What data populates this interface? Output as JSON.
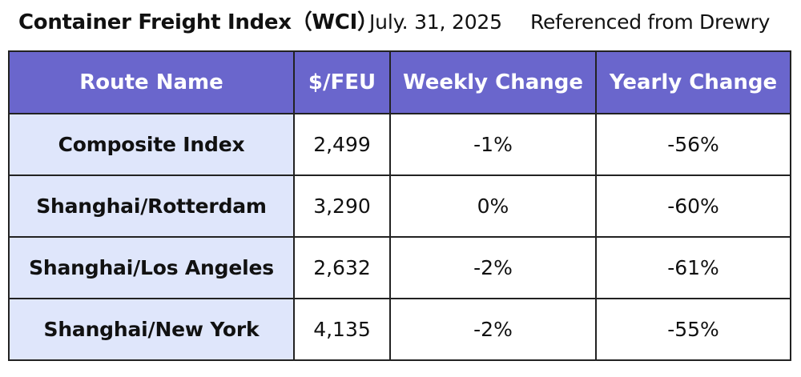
{
  "header": {
    "title": "Container Freight Index（WCI）",
    "date": "July. 31, 2025",
    "source": "Referenced from Drewry"
  },
  "table": {
    "columns": [
      "Route Name",
      "$/FEU",
      "Weekly Change",
      "Yearly Change"
    ],
    "rows": [
      {
        "route": "Composite Index",
        "feu": "2,499",
        "weekly": "-1%",
        "yearly": "-56%"
      },
      {
        "route": "Shanghai/Rotterdam",
        "feu": "3,290",
        "weekly": "0%",
        "yearly": "-60%"
      },
      {
        "route": "Shanghai/Los Angeles",
        "feu": "2,632",
        "weekly": "-2%",
        "yearly": "-61%"
      },
      {
        "route": "Shanghai/New York",
        "feu": "4,135",
        "weekly": "-2%",
        "yearly": "-55%"
      }
    ]
  },
  "colors": {
    "header_bg": "#6a66cc",
    "route_bg": "#dfe6fb",
    "border": "#222222"
  }
}
